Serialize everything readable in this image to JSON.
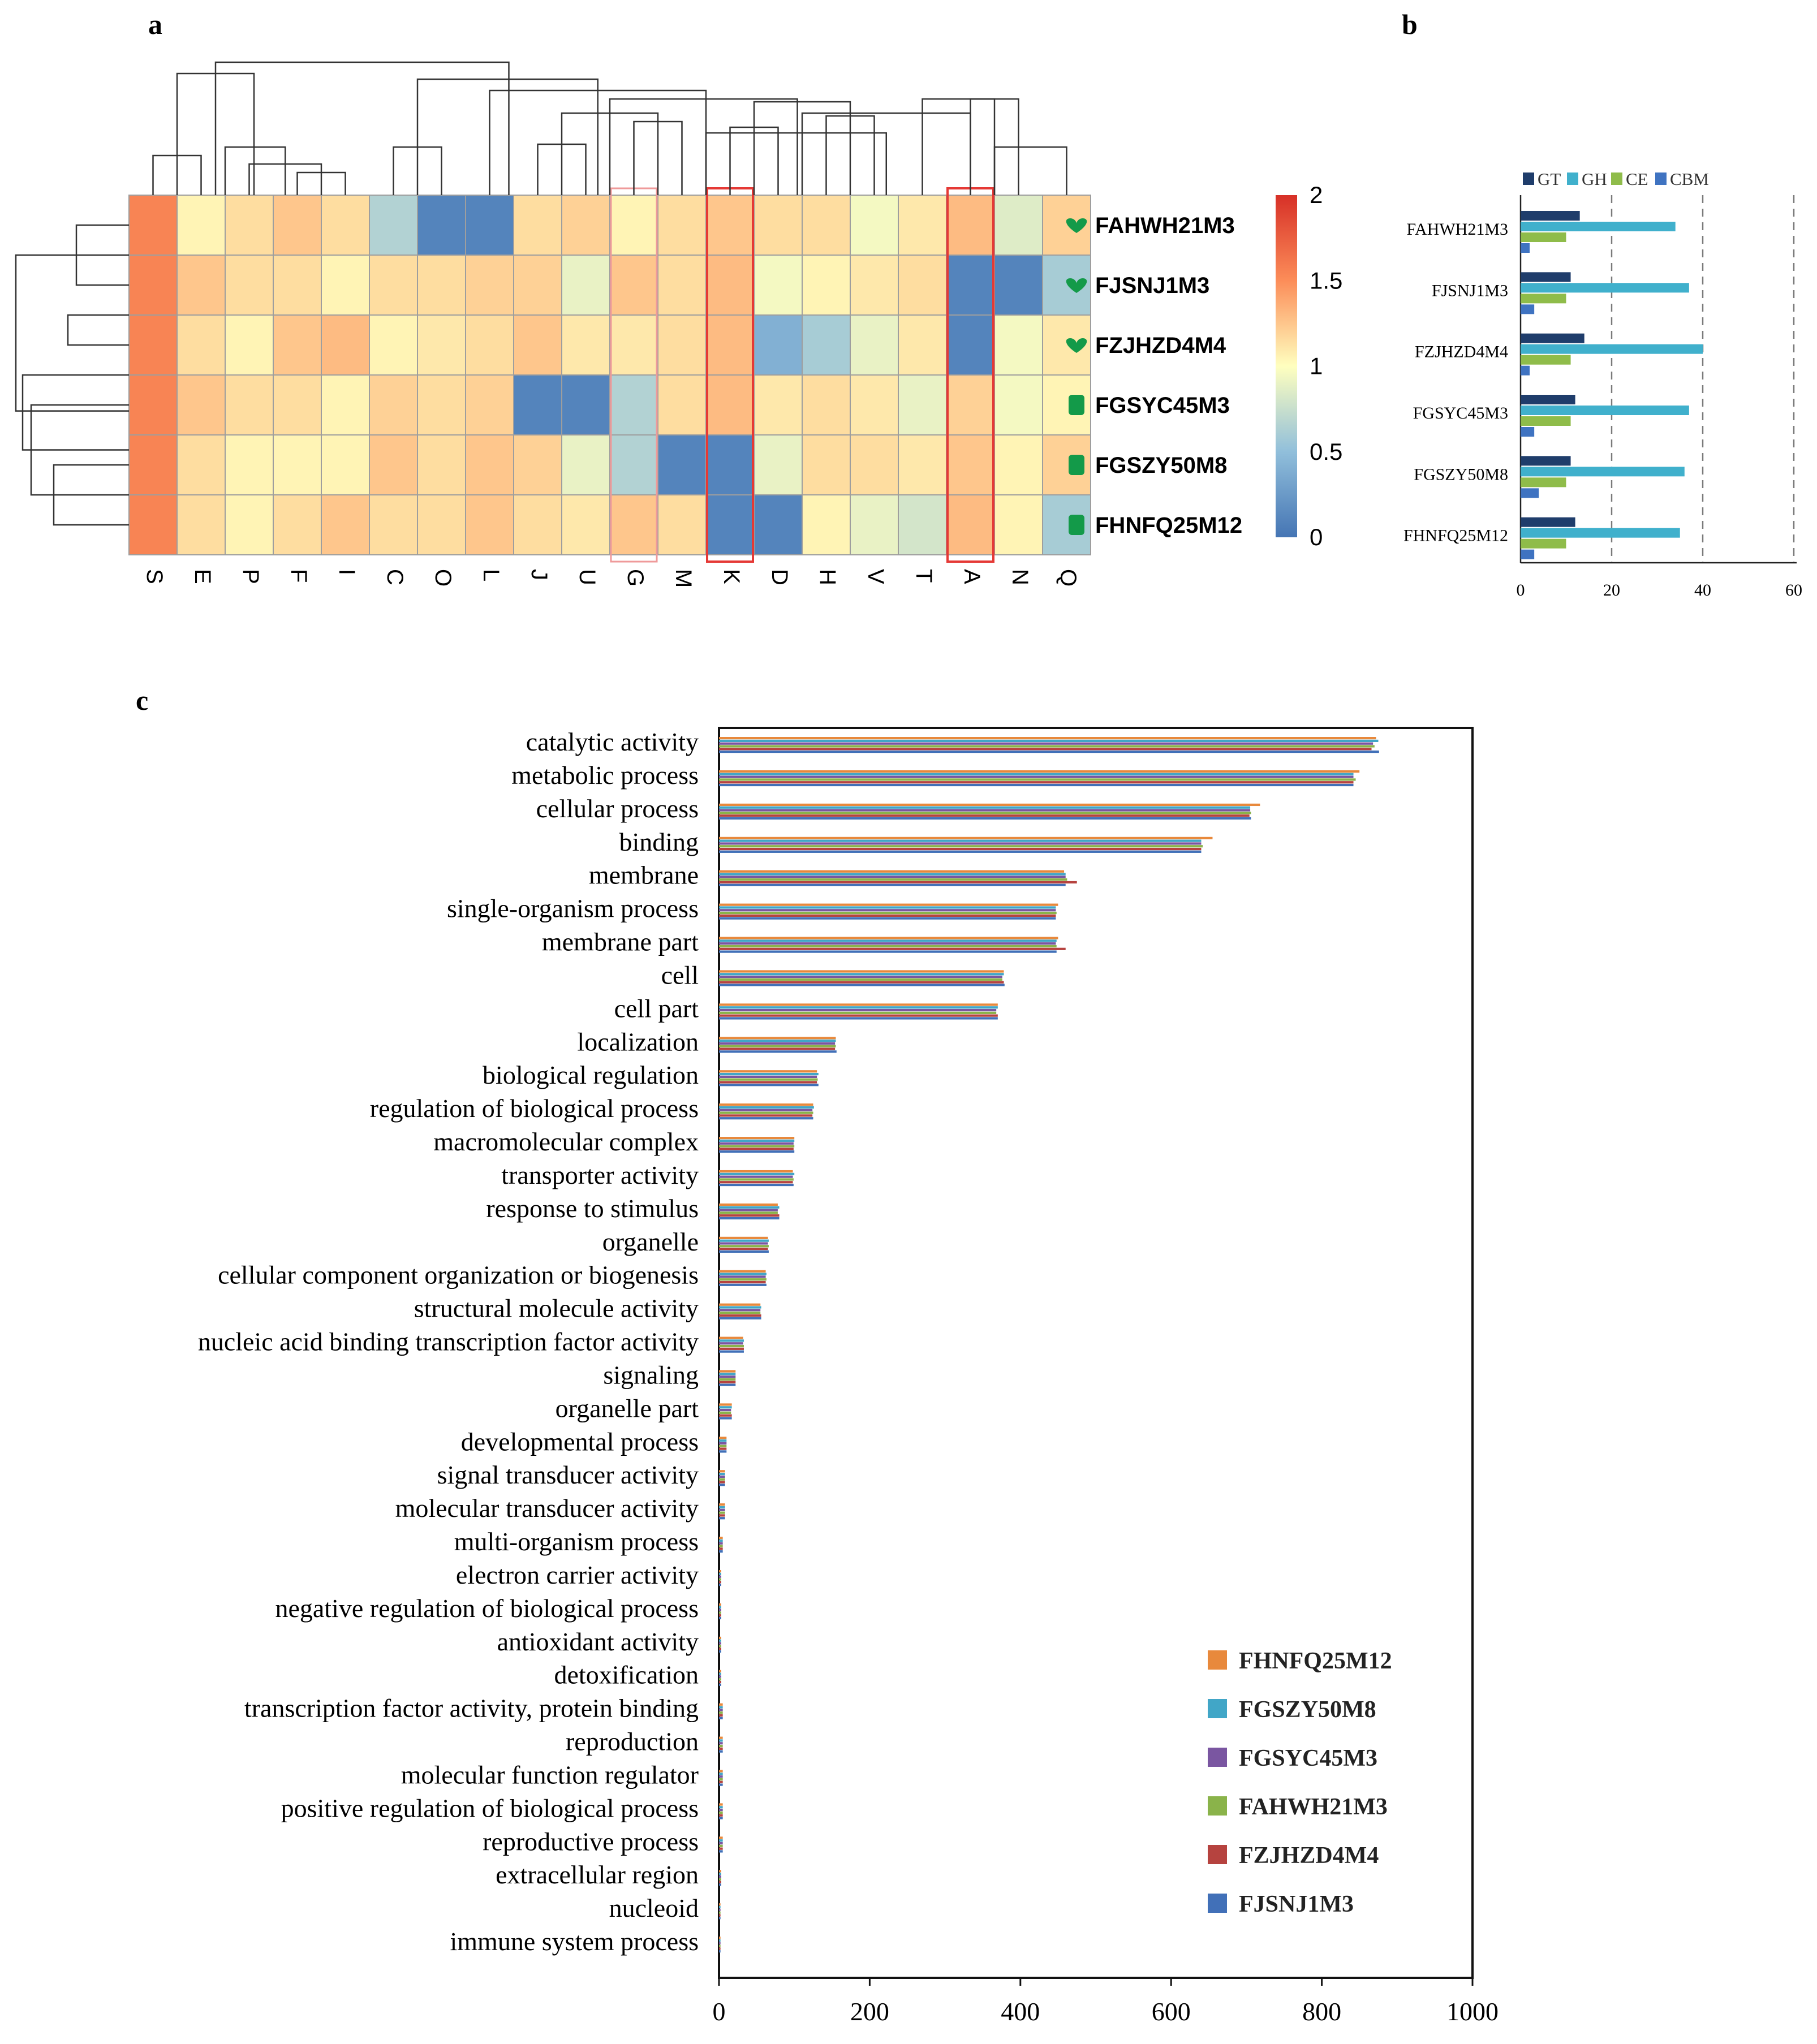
{
  "chart_data": [
    {
      "panel": "a",
      "type": "heatmap",
      "columns": [
        "S",
        "E",
        "P",
        "F",
        "I",
        "C",
        "O",
        "L",
        "J",
        "U",
        "G",
        "M",
        "K",
        "D",
        "H",
        "V",
        "T",
        "A",
        "N",
        "Q"
      ],
      "rows": [
        {
          "name": "FAHWH21M3",
          "marker": "heart",
          "values": [
            1.55,
            1.05,
            1.15,
            1.25,
            1.15,
            0.65,
            0.1,
            0.1,
            1.15,
            1.2,
            1.05,
            1.15,
            1.25,
            1.15,
            1.15,
            0.95,
            1.1,
            1.3,
            0.85,
            1.2
          ]
        },
        {
          "name": "FJSNJ1M3",
          "marker": "heart",
          "values": [
            1.55,
            1.25,
            1.15,
            1.15,
            1.05,
            1.15,
            1.15,
            1.2,
            1.2,
            0.9,
            1.25,
            1.15,
            1.3,
            0.95,
            1.05,
            1.1,
            1.15,
            0.1,
            0.1,
            0.6
          ]
        },
        {
          "name": "FZJHZD4M4",
          "marker": "heart",
          "values": [
            1.55,
            1.15,
            1.05,
            1.25,
            1.3,
            1.05,
            1.1,
            1.15,
            1.25,
            1.1,
            1.1,
            1.15,
            1.3,
            0.4,
            0.6,
            0.9,
            1.1,
            0.1,
            0.95,
            1.1
          ]
        },
        {
          "name": "FGSYC45M3",
          "marker": "square",
          "values": [
            1.55,
            1.25,
            1.15,
            1.15,
            1.05,
            1.2,
            1.15,
            1.2,
            0.1,
            0.1,
            0.65,
            1.15,
            1.3,
            1.1,
            1.15,
            1.1,
            0.9,
            1.2,
            0.95,
            1.05
          ]
        },
        {
          "name": "FGSZY50M8",
          "marker": "square",
          "values": [
            1.55,
            1.15,
            1.05,
            1.05,
            1.05,
            1.25,
            1.15,
            1.25,
            1.2,
            0.9,
            0.65,
            0.1,
            0.1,
            0.9,
            1.15,
            1.15,
            1.1,
            1.25,
            1.05,
            1.2
          ]
        },
        {
          "name": "FHNFQ25M12",
          "marker": "square",
          "values": [
            1.55,
            1.15,
            1.05,
            1.15,
            1.25,
            1.15,
            1.15,
            1.25,
            1.15,
            1.1,
            1.25,
            1.15,
            0.1,
            0.1,
            1.05,
            0.9,
            0.8,
            1.3,
            1.05,
            0.6
          ]
        }
      ],
      "highlighted_columns": [
        "G",
        "K",
        "A"
      ],
      "colorbar": {
        "min": 0,
        "max": 2,
        "ticks": [
          "2",
          "1.5",
          "1",
          "0.5",
          "0"
        ]
      },
      "column_dendrogram_order": [
        "S",
        "E",
        "P",
        "F",
        "I",
        "C",
        "O",
        "L",
        "J",
        "U",
        "G",
        "M",
        "K",
        "D",
        "H",
        "V",
        "T",
        "A",
        "N",
        "Q"
      ]
    },
    {
      "panel": "b",
      "type": "bar",
      "orientation": "horizontal",
      "categories": [
        "FAHWH21M3",
        "FJSNJ1M3",
        "FZJHZD4M4",
        "FGSYC45M3",
        "FGSZY50M8",
        "FHNFQ25M12"
      ],
      "series": [
        {
          "name": "GT",
          "color": "#1f3d6b",
          "values": [
            13,
            11,
            14,
            12,
            11,
            12
          ]
        },
        {
          "name": "GH",
          "color": "#40b0cc",
          "values": [
            34,
            37,
            40,
            37,
            36,
            35
          ]
        },
        {
          "name": "CE",
          "color": "#8fbc4a",
          "values": [
            10,
            10,
            11,
            11,
            10,
            10
          ]
        },
        {
          "name": "CBM",
          "color": "#3f73c1",
          "values": [
            2,
            3,
            2,
            3,
            4,
            3
          ]
        }
      ],
      "xlim": [
        0,
        60
      ],
      "xticks": [
        "0",
        "20",
        "40",
        "60"
      ]
    },
    {
      "panel": "c",
      "type": "bar",
      "orientation": "horizontal",
      "categories": [
        "catalytic activity",
        "metabolic process",
        "cellular process",
        "binding",
        "membrane",
        "single-organism process",
        "membrane part",
        "cell",
        "cell part",
        "localization",
        "biological regulation",
        "regulation of biological process",
        "macromolecular complex",
        "transporter activity",
        "response to stimulus",
        "organelle",
        "cellular component organization or biogenesis",
        "structural molecule activity",
        "nucleic acid binding transcription factor activity",
        "signaling",
        "organelle part",
        "developmental process",
        "signal transducer activity",
        "molecular transducer activity",
        "multi-organism process",
        "electron carrier activity",
        "negative regulation of biological process",
        "antioxidant activity",
        "detoxification",
        "transcription factor activity, protein binding",
        "reproduction",
        "molecular function regulator",
        "positive regulation of biological process",
        "reproductive process",
        "extracellular region",
        "nucleoid",
        "immune system process"
      ],
      "series": [
        {
          "name": "FHNFQ25M12",
          "color": "#e8893c",
          "values": [
            872,
            850,
            718,
            655,
            458,
            450,
            450,
            378,
            370,
            155,
            130,
            125,
            100,
            98,
            78,
            65,
            62,
            55,
            32,
            22,
            17,
            10,
            8,
            8,
            5,
            3,
            3,
            3,
            3,
            5,
            5,
            5,
            5,
            5,
            3,
            2,
            2
          ]
        },
        {
          "name": "FGSZY50M8",
          "color": "#41a6c7",
          "values": [
            875,
            842,
            705,
            640,
            460,
            447,
            448,
            378,
            370,
            155,
            132,
            126,
            100,
            100,
            80,
            66,
            63,
            56,
            33,
            22,
            17,
            10,
            8,
            8,
            5,
            3,
            3,
            3,
            3,
            5,
            5,
            5,
            5,
            5,
            3,
            2,
            2
          ]
        },
        {
          "name": "FGSYC45M3",
          "color": "#7a56a1",
          "values": [
            868,
            842,
            705,
            640,
            460,
            447,
            447,
            376,
            368,
            154,
            130,
            124,
            99,
            98,
            78,
            65,
            62,
            55,
            32,
            22,
            16,
            10,
            8,
            8,
            5,
            3,
            3,
            3,
            3,
            5,
            5,
            5,
            5,
            5,
            3,
            2,
            2
          ]
        },
        {
          "name": "FAHWH21M3",
          "color": "#8ab34a",
          "values": [
            870,
            845,
            706,
            642,
            462,
            448,
            448,
            376,
            368,
            155,
            131,
            125,
            100,
            99,
            78,
            66,
            63,
            55,
            33,
            22,
            16,
            10,
            8,
            8,
            5,
            3,
            3,
            3,
            3,
            5,
            5,
            5,
            5,
            5,
            3,
            2,
            2
          ]
        },
        {
          "name": "FZJHZD4M4",
          "color": "#b6433f",
          "values": [
            866,
            842,
            704,
            640,
            475,
            447,
            460,
            378,
            370,
            154,
            130,
            124,
            99,
            98,
            80,
            65,
            62,
            56,
            33,
            22,
            17,
            10,
            8,
            8,
            5,
            3,
            3,
            3,
            3,
            5,
            5,
            5,
            5,
            5,
            3,
            2,
            2
          ]
        },
        {
          "name": "FJSNJ1M3",
          "color": "#4170b8",
          "values": [
            876,
            842,
            706,
            640,
            460,
            447,
            448,
            379,
            370,
            156,
            132,
            125,
            100,
            99,
            80,
            66,
            63,
            56,
            33,
            22,
            17,
            10,
            8,
            8,
            5,
            3,
            3,
            3,
            3,
            5,
            5,
            5,
            5,
            5,
            3,
            2,
            2
          ]
        }
      ],
      "xlim": [
        0,
        1000
      ],
      "xticks": [
        "0",
        "200",
        "400",
        "600",
        "800",
        "1000"
      ]
    }
  ],
  "panel_labels": {
    "a": "a",
    "b": "b",
    "c": "c"
  }
}
